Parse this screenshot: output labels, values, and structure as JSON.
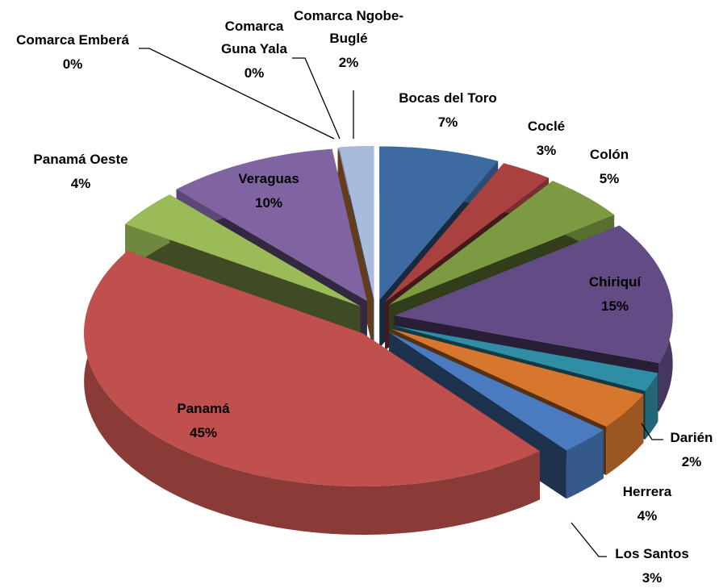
{
  "chart_data": {
    "type": "pie3d",
    "categories": [
      "Bocas del Toro",
      "Coclé",
      "Colón",
      "Chiriquí",
      "Darién",
      "Herrera",
      "Los Santos",
      "Panamá",
      "Panamá Oeste",
      "Veraguas",
      "Comarca Emberá",
      "Comarca Guna Yala",
      "Comarca Ngobe-Buglé"
    ],
    "values": [
      7,
      3,
      5,
      15,
      2,
      4,
      3,
      45,
      4,
      10,
      0,
      0,
      2
    ],
    "value_labels": [
      "7%",
      "3%",
      "5%",
      "15%",
      "2%",
      "4%",
      "3%",
      "45%",
      "4%",
      "10%",
      "0%",
      "0%",
      "2%"
    ],
    "colors": [
      "#3d6aa0",
      "#a8413f",
      "#7c9a42",
      "#634c86",
      "#2f8ea5",
      "#d7772e",
      "#4a7bc0",
      "#c0504d",
      "#9bbb59",
      "#8064a2",
      "#4bacc6",
      "#f79646",
      "#a9bbdd"
    ]
  }
}
